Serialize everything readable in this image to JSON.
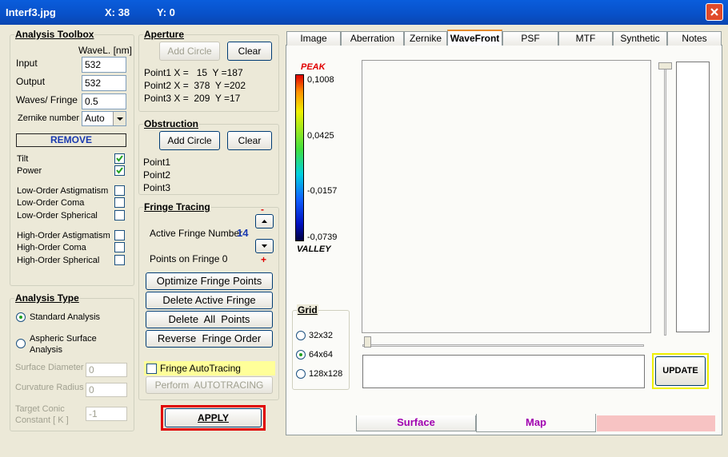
{
  "titlebar": {
    "title": "Interf3.jpg",
    "x": "X: 38",
    "y": "Y: 0"
  },
  "analysis_toolbox": {
    "title": "Analysis Toolbox",
    "wavel_header": "WaveL. [nm]",
    "fields": [
      {
        "label": "Input",
        "value": "532"
      },
      {
        "label": "Output",
        "value": "532"
      },
      {
        "label": "Waves/ Fringe",
        "value": "0.5"
      }
    ],
    "zernike": {
      "label": "Zernike number",
      "value": "Auto"
    },
    "remove": "REMOVE",
    "checks": [
      {
        "label": "Tilt",
        "checked": true
      },
      {
        "label": "Power",
        "checked": true
      },
      {
        "label": "Low-Order Astigmatism",
        "checked": false
      },
      {
        "label": "Low-Order Coma",
        "checked": false
      },
      {
        "label": "Low-Order Spherical",
        "checked": false
      },
      {
        "label": "High-Order Astigmatism",
        "checked": false
      },
      {
        "label": "High-Order Coma",
        "checked": false
      },
      {
        "label": "High-Order Spherical",
        "checked": false
      }
    ]
  },
  "analysis_type": {
    "title": "Analysis Type",
    "options": [
      {
        "label": "Standard Analysis",
        "selected": true
      },
      {
        "label": "Aspheric  Surface Analysis",
        "selected": false
      }
    ],
    "fields": [
      {
        "label": "Surface Diameter",
        "value": "0"
      },
      {
        "label": "Curvature Radius",
        "value": "0"
      },
      {
        "label": "Target Conic Constant [ K ]",
        "value": "-1"
      }
    ]
  },
  "aperture": {
    "title": "Aperture",
    "add_circle": "Add Circle",
    "clear": "Clear",
    "points": [
      "Point1 X =   15  Y =187",
      "Point2 X =  378  Y =202",
      "Point3 X =  209  Y =17"
    ]
  },
  "obstruction": {
    "title": "Obstruction",
    "add_circle": "Add Circle",
    "clear": "Clear",
    "points": [
      "Point1",
      "Point2",
      "Point3"
    ]
  },
  "fringe_tracing": {
    "title": "Fringe Tracing",
    "active_label": "Active Fringe Number",
    "active_value": "14",
    "minus": "-",
    "plus": "+",
    "points_label": "Points on  Fringe 0",
    "buttons": [
      "Optimize Fringe Points",
      "Delete Active Fringe",
      "Delete  All  Points",
      "Reverse  Fringe Order"
    ],
    "autotracing": "Fringe AutoTracing",
    "perform": "Perform  AUTOTRACING"
  },
  "apply": "APPLY",
  "tabs": [
    "Image",
    "Aberration",
    "Zernike",
    "WaveFront",
    "PSF",
    "MTF",
    "Synthetic",
    "Notes"
  ],
  "active_tab": 3,
  "wavefront": {
    "peak": "PEAK",
    "valley": "VALLEY",
    "scale_labels": [
      "0,1008",
      "0,0425",
      "-0,0157",
      "-0,0739"
    ]
  },
  "grid": {
    "title": "Grid",
    "options": [
      {
        "label": "32x32",
        "selected": false
      },
      {
        "label": "64x64",
        "selected": true
      },
      {
        "label": "128x128",
        "selected": false
      }
    ]
  },
  "update": "UPDATE",
  "bottom_tabs": [
    "Surface",
    "Map"
  ],
  "active_bottom_tab": 1
}
